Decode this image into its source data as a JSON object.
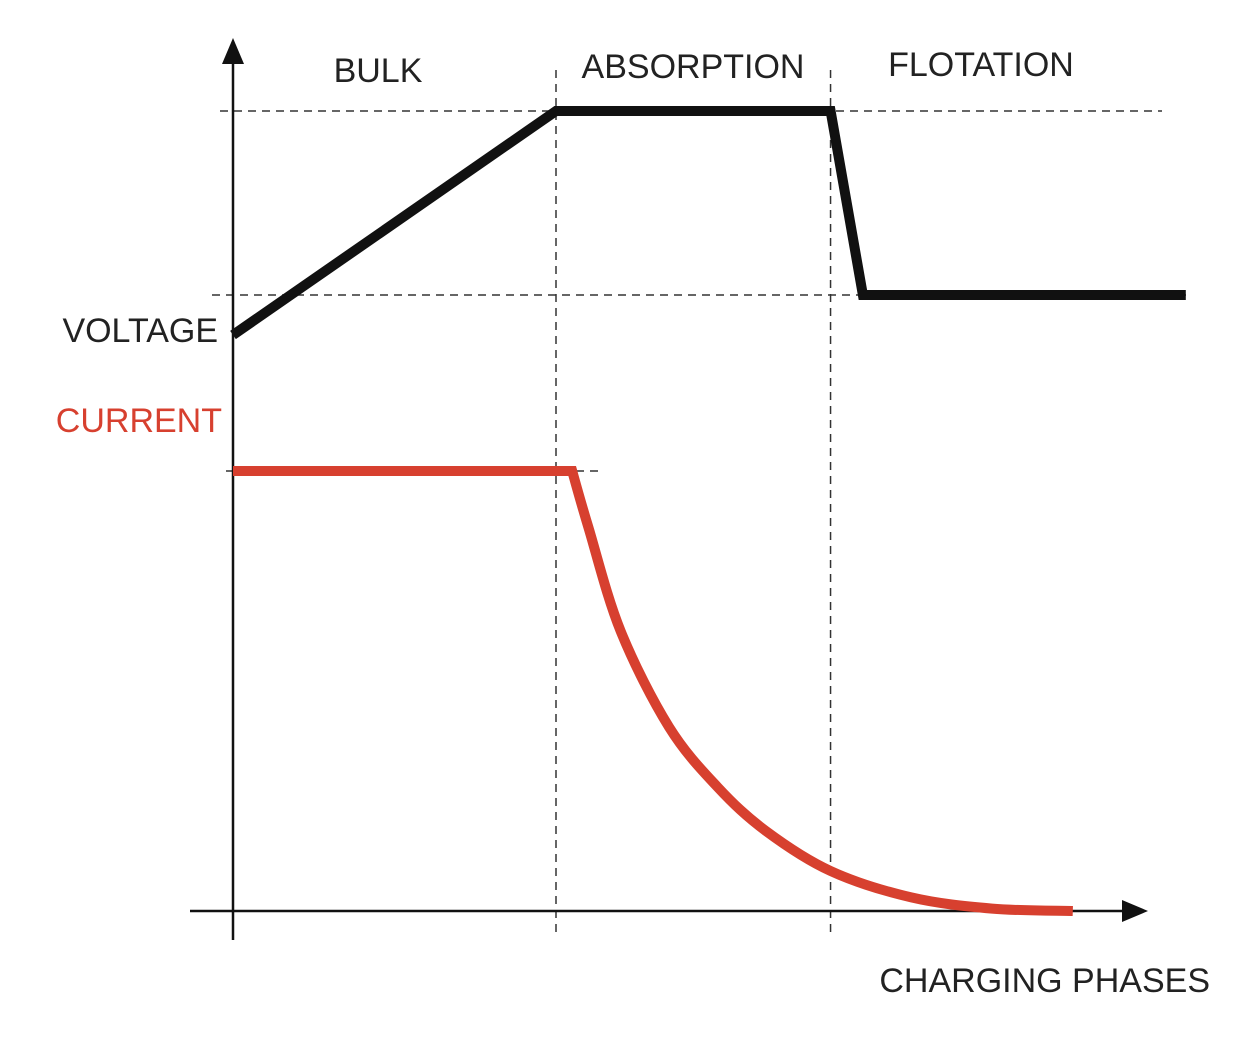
{
  "chart_data": {
    "type": "line",
    "title": "",
    "xlabel": "CHARGING PHASES",
    "ylabel": "",
    "phases": [
      "BULK",
      "ABSORPTION",
      "FLOTATION"
    ],
    "series": [
      {
        "name": "VOLTAGE",
        "color": "#111111",
        "points": [
          [
            0.0,
            0.72
          ],
          [
            1.0,
            1.0
          ],
          [
            1.85,
            1.0
          ],
          [
            1.95,
            0.77
          ],
          [
            2.95,
            0.77
          ]
        ]
      },
      {
        "name": "CURRENT",
        "color": "#d7402f",
        "points": [
          [
            0.0,
            0.55
          ],
          [
            1.05,
            0.55
          ],
          [
            1.1,
            0.48
          ],
          [
            1.2,
            0.35
          ],
          [
            1.35,
            0.23
          ],
          [
            1.5,
            0.155
          ],
          [
            1.65,
            0.1
          ],
          [
            1.85,
            0.05
          ],
          [
            2.1,
            0.017
          ],
          [
            2.35,
            0.003
          ],
          [
            2.6,
            0.0
          ]
        ]
      }
    ],
    "guides": {
      "phase_boundaries": [
        1.0,
        1.85
      ],
      "voltage_levels": [
        1.0,
        0.77
      ],
      "current_level": 0.55
    },
    "xlim": [
      0,
      3
    ],
    "ylim": [
      0,
      1.1
    ],
    "grid": false,
    "legend": "none"
  }
}
